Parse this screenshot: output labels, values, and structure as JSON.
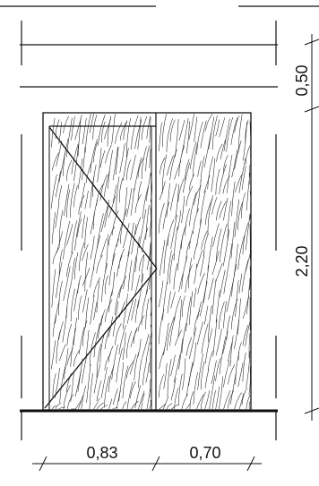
{
  "dimensions": {
    "bottom_left": "0,83",
    "bottom_right": "0,70",
    "right_top": "0,50",
    "right_main": "2,20"
  },
  "drawing": {
    "hatch": "wood-grain",
    "door_panel": "hinged-door-with-opening-triangle"
  }
}
